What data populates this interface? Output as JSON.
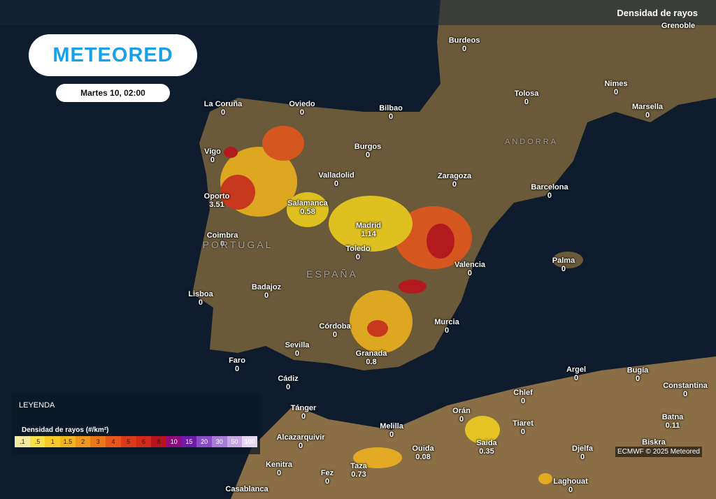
{
  "header": {
    "logo": "METEORED",
    "date": "Martes 10, 02:00",
    "layer": "Densidad de rayos"
  },
  "countries": [
    "PORTUGAL",
    "ESPAÑA",
    "ANDORRA"
  ],
  "cities": [
    {
      "name": "Burdeos",
      "value": 0
    },
    {
      "name": "Tolosa",
      "value": 0
    },
    {
      "name": "Nimes",
      "value": 0
    },
    {
      "name": "Marsella",
      "value": 0
    },
    {
      "name": "Grenoble"
    },
    {
      "name": "La Coruña",
      "value": 0
    },
    {
      "name": "Oviedo",
      "value": 0
    },
    {
      "name": "Bilbao",
      "value": 0
    },
    {
      "name": "Vigo",
      "value": 0
    },
    {
      "name": "Burgos",
      "value": 0
    },
    {
      "name": "Zaragoza",
      "value": 0
    },
    {
      "name": "Valladolid",
      "value": 0
    },
    {
      "name": "Barcelona",
      "value": 0
    },
    {
      "name": "Oporto",
      "value": 3.51
    },
    {
      "name": "Salamanca",
      "value": 0.58
    },
    {
      "name": "Madrid",
      "value": 1.14
    },
    {
      "name": "Coimbra",
      "value": 0
    },
    {
      "name": "Toledo",
      "value": 0
    },
    {
      "name": "Valencia",
      "value": 0
    },
    {
      "name": "Palma",
      "value": 0
    },
    {
      "name": "Lisboa",
      "value": 0
    },
    {
      "name": "Badajoz",
      "value": 0
    },
    {
      "name": "Murcia",
      "value": 0
    },
    {
      "name": "Córdoba",
      "value": 0
    },
    {
      "name": "Sevilla",
      "value": 0
    },
    {
      "name": "Granada",
      "value": 0.8
    },
    {
      "name": "Faro",
      "value": 0
    },
    {
      "name": "Cádiz",
      "value": 0
    },
    {
      "name": "Argel",
      "value": 0
    },
    {
      "name": "Bugía",
      "value": 0
    },
    {
      "name": "Constantina",
      "value": 0
    },
    {
      "name": "Chlef",
      "value": 0
    },
    {
      "name": "Tánger",
      "value": 0
    },
    {
      "name": "Orán",
      "value": 0
    },
    {
      "name": "Tiaret",
      "value": 0
    },
    {
      "name": "Melilla",
      "value": 0
    },
    {
      "name": "Batna",
      "value": 0.11
    },
    {
      "name": "Alcazarquivir",
      "value": 0
    },
    {
      "name": "Ouida",
      "value": 0.08
    },
    {
      "name": "Saida",
      "value": 0.35
    },
    {
      "name": "Djelfa",
      "value": 0
    },
    {
      "name": "Biskra"
    },
    {
      "name": "Kenitra",
      "value": 0
    },
    {
      "name": "Taza",
      "value": 0.73
    },
    {
      "name": "Fez",
      "value": 0
    },
    {
      "name": "Laghouat",
      "value": 0
    },
    {
      "name": "Casablanca"
    }
  ],
  "legend": {
    "title": "LEYENDA",
    "subtitle": "Densidad de rayos (#/km²)",
    "ticks": [
      {
        "value": 0.1,
        "label": ".1"
      },
      {
        "value": 0.5,
        "label": ".5"
      },
      1,
      1.5,
      2,
      3,
      4,
      5,
      6,
      8,
      10,
      15,
      20,
      30,
      50,
      100
    ],
    "colors": [
      "#f5e9a0",
      "#f6e04a",
      "#f5c928",
      "#f3b51d",
      "#f1961c",
      "#ec761b",
      "#e8561b",
      "#de3a1a",
      "#d22a1a",
      "#b8121f",
      "#8e0c7e",
      "#6f1aa8",
      "#8c4cc8",
      "#a97ad6",
      "#c7a6e3",
      "#e6d6f1"
    ]
  },
  "credit": "ECMWF © 2025 Meteored"
}
